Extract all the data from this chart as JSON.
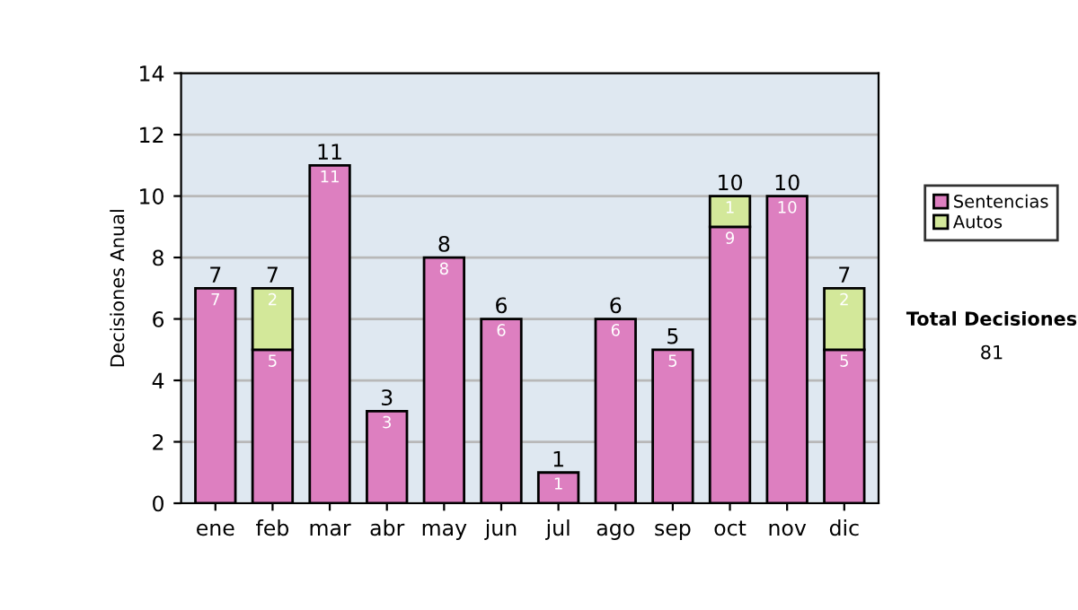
{
  "chart_data": {
    "type": "bar",
    "ylabel": "Decisiones Anual",
    "categories": [
      "ene",
      "feb",
      "mar",
      "abr",
      "may",
      "jun",
      "jul",
      "ago",
      "sep",
      "oct",
      "nov",
      "dic"
    ],
    "stacked": true,
    "series": [
      {
        "name": "Sentencias",
        "color": "#dd7fc0",
        "values": [
          7,
          5,
          11,
          3,
          8,
          6,
          1,
          6,
          5,
          9,
          10,
          5
        ],
        "value_labels": [
          "7",
          "5",
          "11",
          "3",
          "8",
          "6",
          "1",
          "6",
          "5",
          "9",
          "10",
          "5"
        ]
      },
      {
        "name": "Autos",
        "color": "#d3e89a",
        "values": [
          null,
          2,
          null,
          null,
          null,
          null,
          null,
          null,
          null,
          1,
          null,
          2
        ],
        "value_labels": [
          null,
          "2",
          null,
          null,
          null,
          null,
          null,
          null,
          null,
          "1",
          null,
          "2"
        ]
      }
    ],
    "totals": [
      "7",
      "7",
      "11",
      "3",
      "8",
      "6",
      "1",
      "6",
      "5",
      "10",
      "10",
      "7"
    ],
    "ylim": [
      0,
      14
    ],
    "yticks": [
      0,
      2,
      4,
      6,
      8,
      10,
      12,
      14
    ],
    "grid": "y",
    "legend": "right",
    "annotations": [
      "Total Decisiones",
      "81"
    ]
  }
}
